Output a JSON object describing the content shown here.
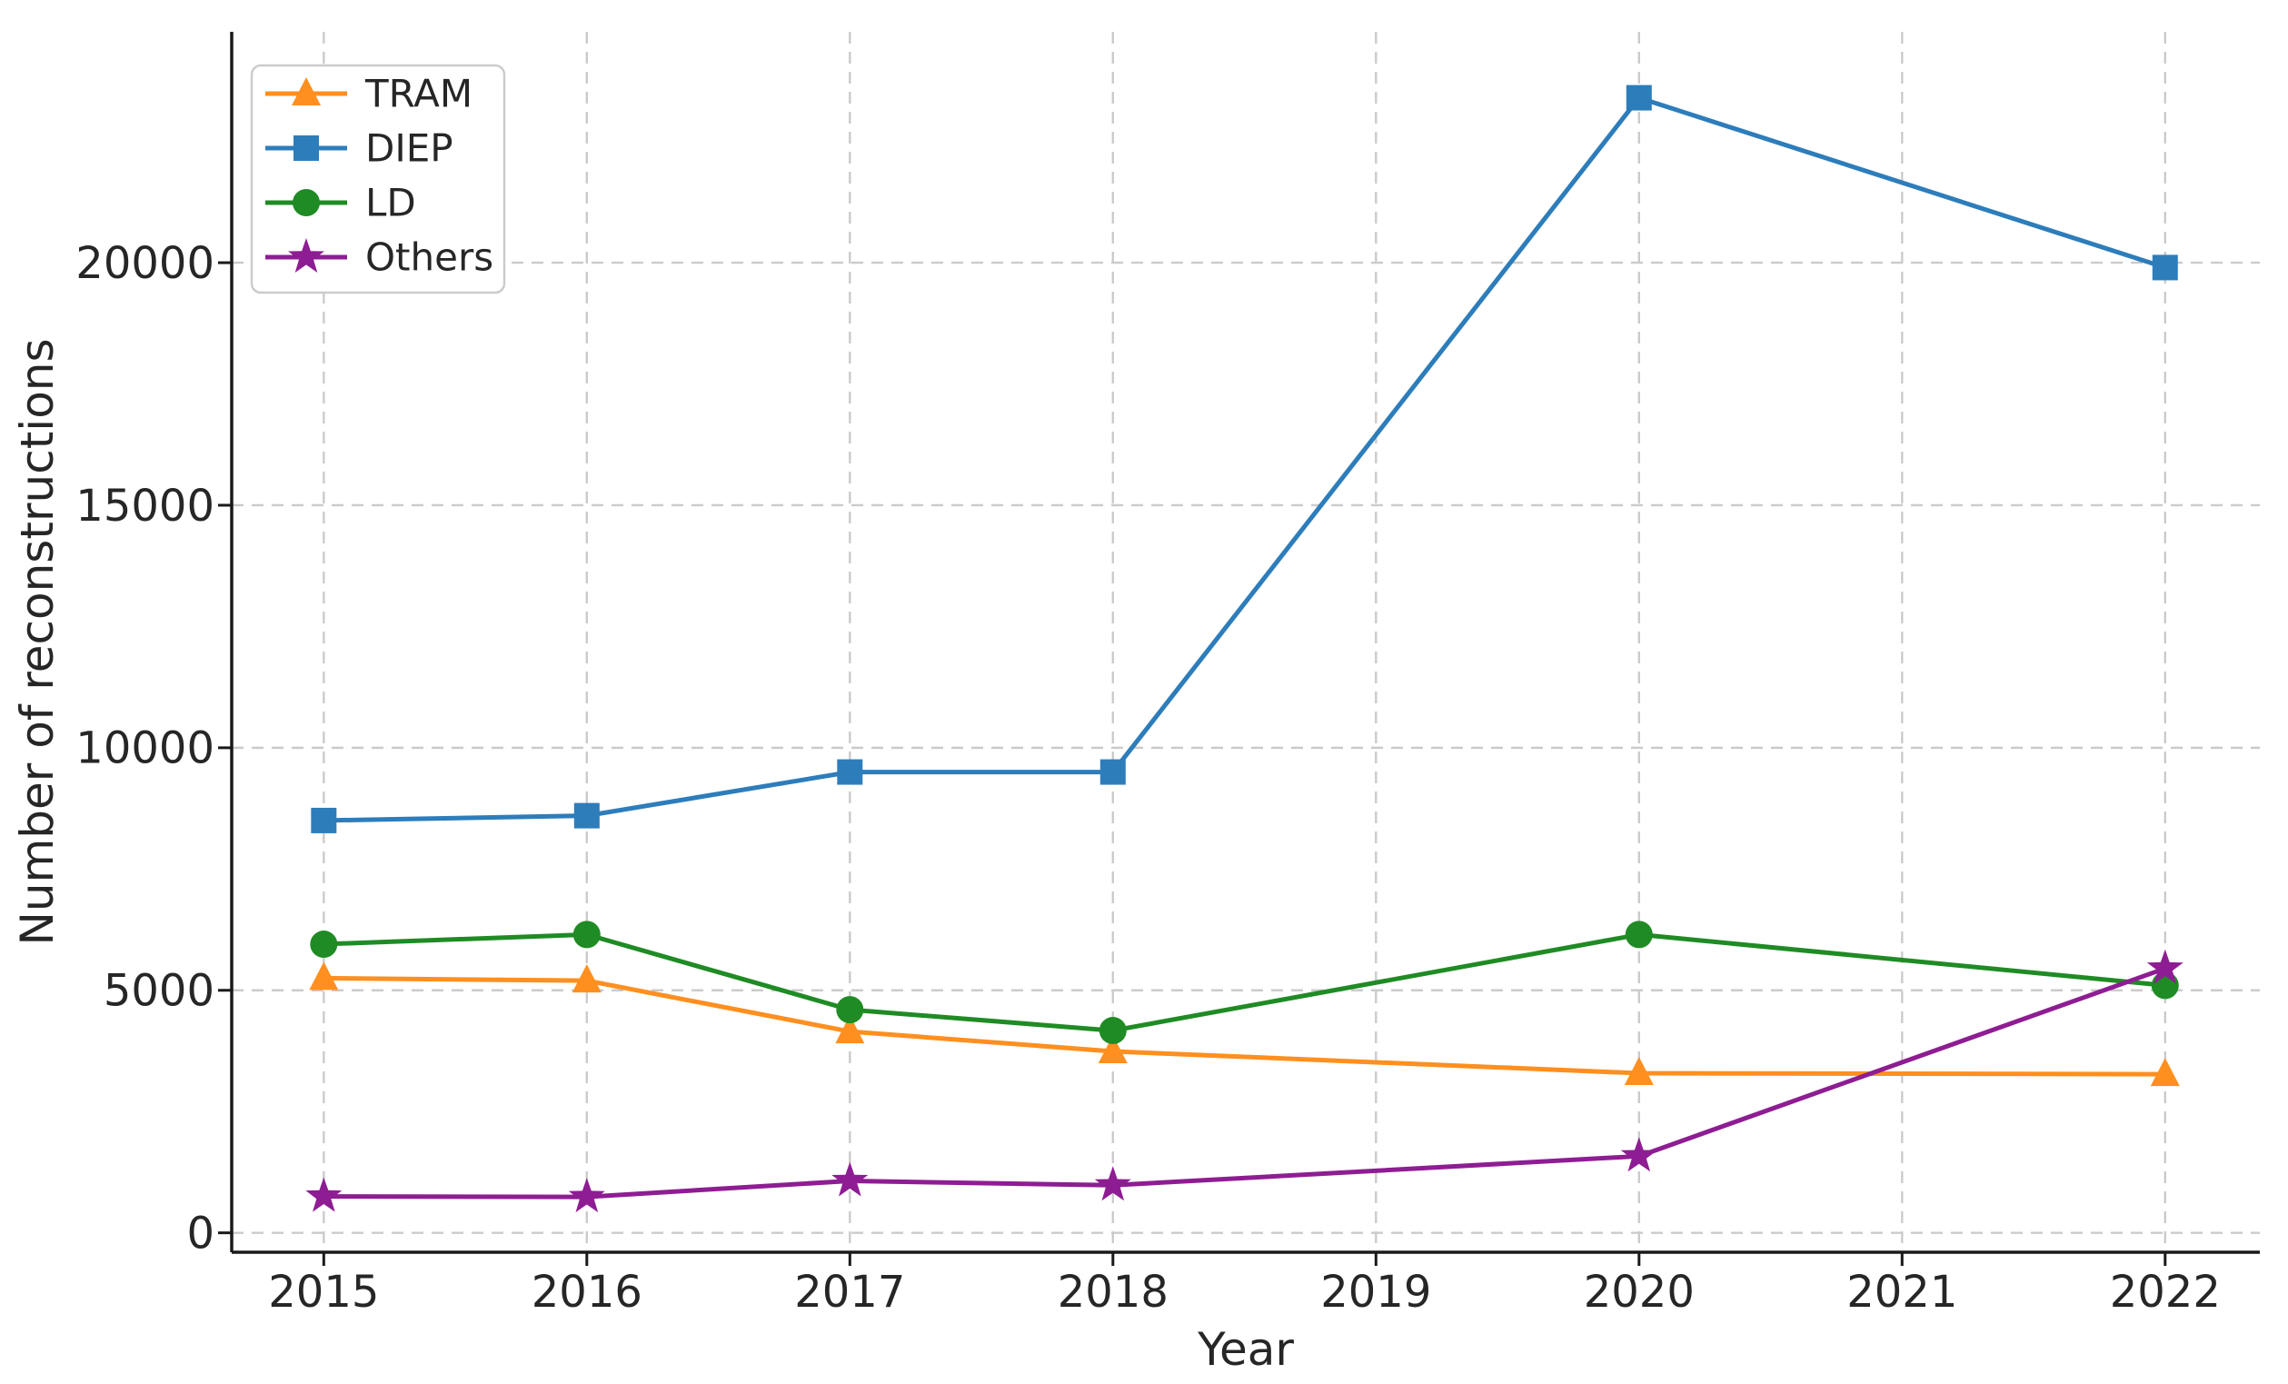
{
  "chart_data": {
    "type": "line",
    "title": "",
    "xlabel": "Year",
    "ylabel": "Number of reconstructions",
    "x": [
      2015,
      2016,
      2017,
      2018,
      2020,
      2022
    ],
    "xticks": [
      2015,
      2016,
      2017,
      2018,
      2019,
      2020,
      2021,
      2022
    ],
    "yticks": [
      0,
      5000,
      10000,
      15000,
      20000
    ],
    "xlim": [
      2014.65,
      2022.36
    ],
    "ylim": [
      -400,
      24760
    ],
    "grid": {
      "visible": true,
      "style": "dashed",
      "color": "#cbcbcb"
    },
    "legend": {
      "position": "upper-left",
      "labels": [
        "TRAM",
        "DIEP",
        "LD",
        "Others"
      ]
    },
    "series": [
      {
        "name": "TRAM",
        "color": "#ff8f1f",
        "marker": "triangle",
        "values": [
          5250,
          5200,
          4150,
          3740,
          3290,
          3270
        ]
      },
      {
        "name": "DIEP",
        "color": "#2d7dbb",
        "marker": "square",
        "values": [
          8500,
          8600,
          9500,
          9500,
          23400,
          19900
        ]
      },
      {
        "name": "LD",
        "color": "#1f8b24",
        "marker": "circle",
        "values": [
          5950,
          6150,
          4600,
          4170,
          6150,
          5100
        ]
      },
      {
        "name": "Others",
        "color": "#8e1d93",
        "marker": "star",
        "values": [
          750,
          740,
          1070,
          980,
          1580,
          5450
        ]
      }
    ]
  }
}
